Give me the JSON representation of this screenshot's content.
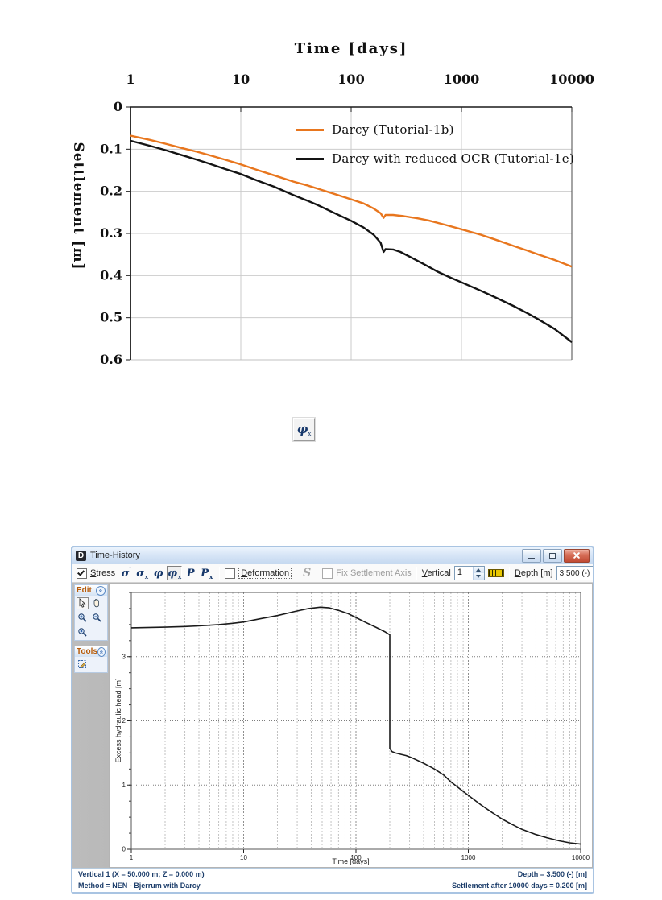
{
  "phi_button": {
    "name": "excess-hydraulic-head-icon",
    "glyph": "φ",
    "sub": "x"
  },
  "window": {
    "title": "Time-History",
    "icon_letter": "D",
    "toolbar": {
      "stress": {
        "label": "Stress",
        "checked": true
      },
      "icons": [
        {
          "name": "effective-stress-icon",
          "glyph": "σ",
          "mark": "′",
          "mark_pos": "sup",
          "selected": false
        },
        {
          "name": "total-stress-icon",
          "glyph": "σ",
          "mark": "x",
          "mark_pos": "sub",
          "selected": false
        },
        {
          "name": "hydraulic-head-icon",
          "glyph": "φ",
          "mark": "",
          "mark_pos": "",
          "selected": false
        },
        {
          "name": "excess-hydraulic-head-icon",
          "glyph": "φ",
          "mark": "x",
          "mark_pos": "sub",
          "selected": true
        },
        {
          "name": "pore-pressure-icon",
          "glyph": "P",
          "mark": "",
          "mark_pos": "",
          "selected": false
        },
        {
          "name": "excess-pore-pressure-icon",
          "glyph": "P",
          "mark": "x",
          "mark_pos": "sub",
          "selected": false
        }
      ],
      "deformation": {
        "label": "Deformation",
        "checked": false
      },
      "s_icon": "S",
      "fix_axis": {
        "label": "Fix Settlement Axis",
        "checked": false,
        "enabled": false
      },
      "vertical_label": "Vertical",
      "vertical_value": "1",
      "depth_label": "Depth [m]",
      "depth_value": "3.500 (-)"
    },
    "panels": [
      {
        "title": "Edit",
        "buttons": [
          "pointer-icon",
          "pan-hand-icon",
          "zoom-in-icon",
          "zoom-out-icon",
          "zoom-reset-icon"
        ]
      },
      {
        "title": "Tools",
        "buttons": [
          "select-area-icon"
        ]
      }
    ],
    "statusbar": {
      "line1_left": "Vertical 1 (X = 50.000 m; Z = 0.000 m)",
      "line2_left": "Method = NEN - Bjerrum with Darcy",
      "line1_right": "Depth = 3.500 (-) [m]",
      "line2_right": "Settlement after 10000 days = 0.200 [m]"
    }
  },
  "chart_data": [
    {
      "type": "line",
      "title": "Time [days]",
      "xlabel": "Time [days]",
      "ylabel": "Settlement [m]",
      "xscale": "log",
      "xlim": [
        1,
        10000
      ],
      "ylim": [
        0,
        0.6
      ],
      "y_inverted": true,
      "x_ticks": [
        1,
        10,
        100,
        1000,
        10000
      ],
      "y_ticks": [
        0,
        0.1,
        0.2,
        0.3,
        0.4,
        0.5,
        0.6
      ],
      "grid": "major",
      "legend_position": "upper right inside",
      "series": [
        {
          "name": "Darcy (Tutorial-1b)",
          "color": "#e8761e",
          "points": [
            [
              1,
              0.068
            ],
            [
              1.5,
              0.078
            ],
            [
              2,
              0.086
            ],
            [
              3,
              0.098
            ],
            [
              4,
              0.106
            ],
            [
              5,
              0.113
            ],
            [
              7,
              0.124
            ],
            [
              10,
              0.136
            ],
            [
              14,
              0.149
            ],
            [
              20,
              0.162
            ],
            [
              30,
              0.177
            ],
            [
              40,
              0.186
            ],
            [
              50,
              0.194
            ],
            [
              70,
              0.206
            ],
            [
              100,
              0.219
            ],
            [
              130,
              0.229
            ],
            [
              160,
              0.241
            ],
            [
              185,
              0.252
            ],
            [
              197,
              0.263
            ],
            [
              205,
              0.256
            ],
            [
              240,
              0.256
            ],
            [
              300,
              0.259
            ],
            [
              400,
              0.264
            ],
            [
              500,
              0.269
            ],
            [
              700,
              0.279
            ],
            [
              1000,
              0.29
            ],
            [
              1500,
              0.303
            ],
            [
              2000,
              0.314
            ],
            [
              3000,
              0.33
            ],
            [
              4000,
              0.341
            ],
            [
              5000,
              0.35
            ],
            [
              7000,
              0.363
            ],
            [
              10000,
              0.379
            ]
          ]
        },
        {
          "name": "Darcy with reduced OCR (Tutorial-1e)",
          "color": "#141414",
          "points": [
            [
              1,
              0.08
            ],
            [
              1.5,
              0.092
            ],
            [
              2,
              0.101
            ],
            [
              3,
              0.115
            ],
            [
              4,
              0.125
            ],
            [
              5,
              0.133
            ],
            [
              7,
              0.146
            ],
            [
              10,
              0.159
            ],
            [
              14,
              0.174
            ],
            [
              20,
              0.189
            ],
            [
              30,
              0.209
            ],
            [
              40,
              0.222
            ],
            [
              50,
              0.233
            ],
            [
              70,
              0.251
            ],
            [
              100,
              0.27
            ],
            [
              130,
              0.286
            ],
            [
              160,
              0.303
            ],
            [
              185,
              0.322
            ],
            [
              197,
              0.344
            ],
            [
              205,
              0.337
            ],
            [
              240,
              0.338
            ],
            [
              280,
              0.344
            ],
            [
              350,
              0.357
            ],
            [
              450,
              0.372
            ],
            [
              600,
              0.39
            ],
            [
              800,
              0.405
            ],
            [
              1000,
              0.416
            ],
            [
              1500,
              0.436
            ],
            [
              2000,
              0.451
            ],
            [
              3000,
              0.473
            ],
            [
              4000,
              0.49
            ],
            [
              5000,
              0.504
            ],
            [
              7000,
              0.527
            ],
            [
              10000,
              0.558
            ]
          ]
        }
      ]
    },
    {
      "type": "line",
      "title": "",
      "xlabel": "Time [days]",
      "ylabel": "Excess hydraulic head [m]",
      "xscale": "log",
      "xlim": [
        1,
        10000
      ],
      "ylim": [
        0,
        4
      ],
      "y_inverted": false,
      "x_ticks": [
        1,
        10,
        100,
        1000,
        10000
      ],
      "y_ticks": [
        0,
        1,
        2,
        3
      ],
      "y_minor_step": 0.25,
      "grid": "log-minor dashed",
      "series": [
        {
          "name": "Excess hydraulic head",
          "color": "#1b1b1b",
          "points": [
            [
              1,
              3.45
            ],
            [
              2,
              3.46
            ],
            [
              3,
              3.47
            ],
            [
              4,
              3.48
            ],
            [
              6,
              3.5
            ],
            [
              8,
              3.52
            ],
            [
              10,
              3.54
            ],
            [
              14,
              3.59
            ],
            [
              20,
              3.64
            ],
            [
              28,
              3.7
            ],
            [
              38,
              3.75
            ],
            [
              48,
              3.77
            ],
            [
              58,
              3.76
            ],
            [
              70,
              3.72
            ],
            [
              85,
              3.67
            ],
            [
              100,
              3.61
            ],
            [
              120,
              3.54
            ],
            [
              150,
              3.46
            ],
            [
              180,
              3.39
            ],
            [
              200,
              3.34
            ],
            [
              200.01,
              1.57
            ],
            [
              210,
              1.52
            ],
            [
              225,
              1.5
            ],
            [
              250,
              1.48
            ],
            [
              280,
              1.46
            ],
            [
              320,
              1.42
            ],
            [
              400,
              1.34
            ],
            [
              500,
              1.25
            ],
            [
              600,
              1.16
            ],
            [
              700,
              1.05
            ],
            [
              800,
              0.97
            ],
            [
              1000,
              0.84
            ],
            [
              1300,
              0.69
            ],
            [
              1600,
              0.58
            ],
            [
              2000,
              0.47
            ],
            [
              2500,
              0.38
            ],
            [
              3000,
              0.31
            ],
            [
              4000,
              0.23
            ],
            [
              5000,
              0.18
            ],
            [
              6500,
              0.13
            ],
            [
              8000,
              0.1
            ],
            [
              10000,
              0.08
            ]
          ]
        }
      ]
    }
  ]
}
